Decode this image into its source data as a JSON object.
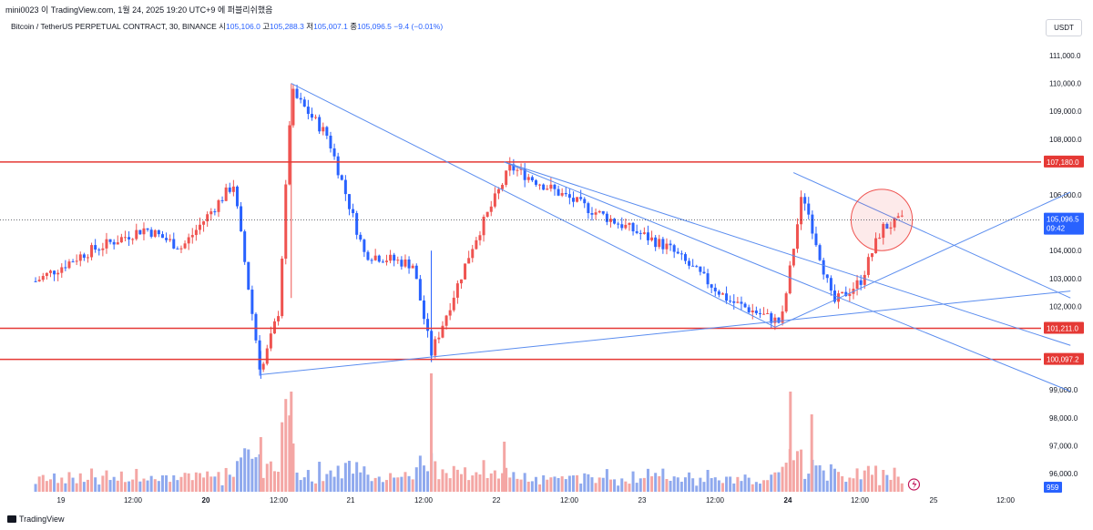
{
  "header": {
    "publish_line": "mini0023 이 TradingView.com, 1월 24, 2025 19:20 UTC+9 에 퍼블리쉬했음",
    "symbol": "Bitcoin / TetherUS PERPETUAL CONTRACT, 30, BINANCE",
    "open_label": "시",
    "open": "105,106.0",
    "high_label": "고",
    "high": "105,288.3",
    "low_label": "저",
    "low": "105,007.1",
    "close_label": "종",
    "close": "105,096.5",
    "change": "−9.4 (−0.01%)"
  },
  "currency_button": "USDT",
  "footer_brand": "TradingView",
  "colors": {
    "up": "#26a69a",
    "down": "#ef5350",
    "candle_up": "#ef5350",
    "candle_down": "#2962ff",
    "level_line": "#e53935",
    "trend_line": "#5b8def",
    "price_badge": "#2962ff"
  },
  "chart_data": {
    "type": "candlestick",
    "interval": "30",
    "y_axis_ticks": [
      "111,000.0",
      "110,000.0",
      "109,000.0",
      "108,000.0",
      "106,000.0",
      "104,000.0",
      "103,000.0",
      "102,000.0",
      "99,000.0",
      "98,000.0",
      "97,000.0",
      "96,000.0"
    ],
    "ylim": [
      95500,
      111800
    ],
    "x_axis_ticks": [
      "19",
      "12:00",
      "20",
      "12:00",
      "21",
      "12:00",
      "22",
      "12:00",
      "23",
      "12:00",
      "24",
      "12:00",
      "25",
      "12:00"
    ],
    "x_bold_ticks": [
      "20",
      "21",
      "22",
      "23",
      "24"
    ],
    "horizontal_levels": [
      {
        "value": 107180.0,
        "label": "107,180.0"
      },
      {
        "value": 101211.0,
        "label": "101,211.0"
      },
      {
        "value": 100097.2,
        "label": "100,097.2"
      }
    ],
    "current_price": {
      "value": 105096.5,
      "label": "105,096.5",
      "countdown": "09:42"
    },
    "volume_badge": "959",
    "trend_lines": [
      {
        "from": [
          "2025-01-20 14:00",
          110000
        ],
        "to": [
          "2025-01-23 21:30",
          101250
        ]
      },
      {
        "from": [
          "2025-01-22 01:00",
          107180
        ],
        "to": [
          "2025-01-25 22:00",
          100600
        ]
      },
      {
        "from": [
          "2025-01-22 01:00",
          107180
        ],
        "to": [
          "2025-01-25 22:00",
          98950
        ]
      },
      {
        "from": [
          "2025-01-24 00:30",
          106800
        ],
        "to": [
          "2025-01-25 22:00",
          102300
        ]
      },
      {
        "from": [
          "2025-01-20 09:00",
          99550
        ],
        "to": [
          "2025-01-25 22:00",
          102550
        ]
      },
      {
        "from": [
          "2025-01-23 21:30",
          101250
        ],
        "to": [
          "2025-01-25 22:00",
          106100
        ]
      }
    ],
    "highlight_circle": {
      "center": [
        "2025-01-24 15:00",
        105100
      ],
      "radius_price": 1100
    },
    "key_points": [
      {
        "t": "2025-01-18 20:00",
        "p": 102900
      },
      {
        "t": "2025-01-19 04:00",
        "p": 103900
      },
      {
        "t": "2025-01-19 14:00",
        "p": 104800
      },
      {
        "t": "2025-01-19 20:00",
        "p": 104100
      },
      {
        "t": "2025-01-20 04:30",
        "p": 106400
      },
      {
        "t": "2025-01-20 09:00",
        "p": 99600
      },
      {
        "t": "2025-01-20 12:00",
        "p": 101900
      },
      {
        "t": "2025-01-20 14:00",
        "p": 109700
      },
      {
        "t": "2025-01-20 20:00",
        "p": 108100
      },
      {
        "t": "2025-01-21 02:00",
        "p": 103900
      },
      {
        "t": "2025-01-21 10:00",
        "p": 103500
      },
      {
        "t": "2025-01-21 13:00",
        "p": 100300
      },
      {
        "t": "2025-01-21 20:00",
        "p": 104300
      },
      {
        "t": "2025-01-22 02:00",
        "p": 107000
      },
      {
        "t": "2025-01-22 14:00",
        "p": 105600
      },
      {
        "t": "2025-01-23 04:00",
        "p": 104100
      },
      {
        "t": "2025-01-23 14:00",
        "p": 102200
      },
      {
        "t": "2025-01-23 22:30",
        "p": 101400
      },
      {
        "t": "2025-01-24 02:00",
        "p": 106100
      },
      {
        "t": "2025-01-24 07:00",
        "p": 102100
      },
      {
        "t": "2025-01-24 11:30",
        "p": 102900
      },
      {
        "t": "2025-01-24 15:00",
        "p": 104800
      },
      {
        "t": "2025-01-24 18:30",
        "p": 105100
      }
    ]
  }
}
